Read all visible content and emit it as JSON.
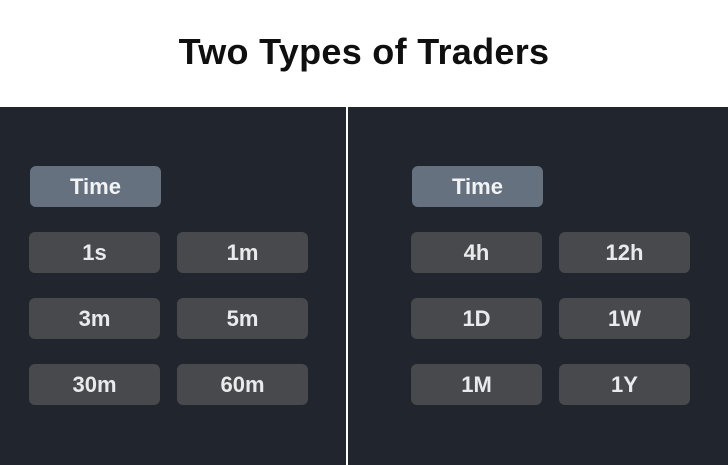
{
  "title": "Two Types of Traders",
  "left_panel": {
    "header_label": "Time",
    "intervals": [
      "1s",
      "1m",
      "3m",
      "5m",
      "30m",
      "60m"
    ]
  },
  "right_panel": {
    "header_label": "Time",
    "intervals": [
      "4h",
      "12h",
      "1D",
      "1W",
      "1M",
      "1Y"
    ]
  },
  "colors": {
    "panel_bg": "#20252e",
    "chip_bg": "#48494d",
    "time_chip_bg": "#667180",
    "text": "#e9eaec"
  }
}
